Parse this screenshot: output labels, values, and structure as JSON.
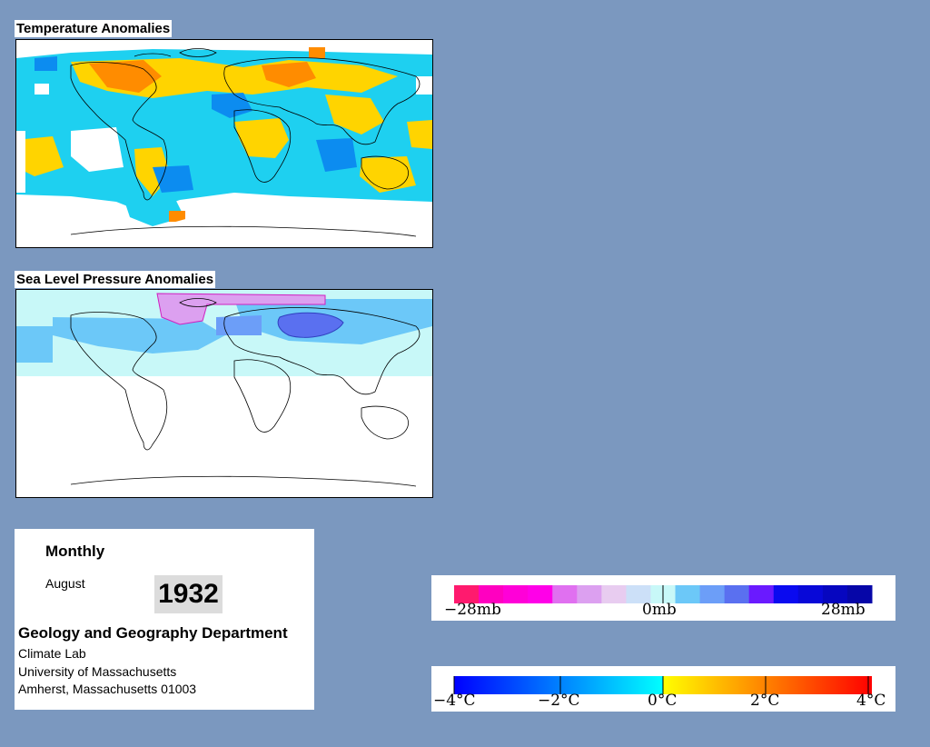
{
  "temperature_map": {
    "title": "Temperature Anomalies"
  },
  "pressure_map": {
    "title": "Sea Level Pressure Anomalies"
  },
  "info": {
    "heading": "Monthly",
    "month": "August",
    "year": "1932",
    "department": "Geology and Geography Department",
    "lab": "Climate Lab",
    "university": "University of Massachusetts",
    "address": "Amherst, Massachusetts 01003"
  },
  "pressure_legend": {
    "labels": [
      "−28mb",
      "0mb",
      "28mb"
    ],
    "colors": [
      "#ff1a6e",
      "#ff00c0",
      "#ff00d8",
      "#ff00e8",
      "#e070f0",
      "#dca0f0",
      "#e8ccf0",
      "#cce0f8",
      "#c8f8f8",
      "#6cc8f8",
      "#6c9ef8",
      "#5a70f0",
      "#6a1aff",
      "#0a0af0",
      "#0808d8",
      "#0606c0",
      "#0606a8"
    ]
  },
  "temperature_legend": {
    "labels": [
      "−4°C",
      "−2°C",
      "0°C",
      "2°C",
      "4°C"
    ],
    "colors": [
      "#0000ff",
      "#00ffff",
      "#ffff00",
      "#ff0000"
    ]
  }
}
